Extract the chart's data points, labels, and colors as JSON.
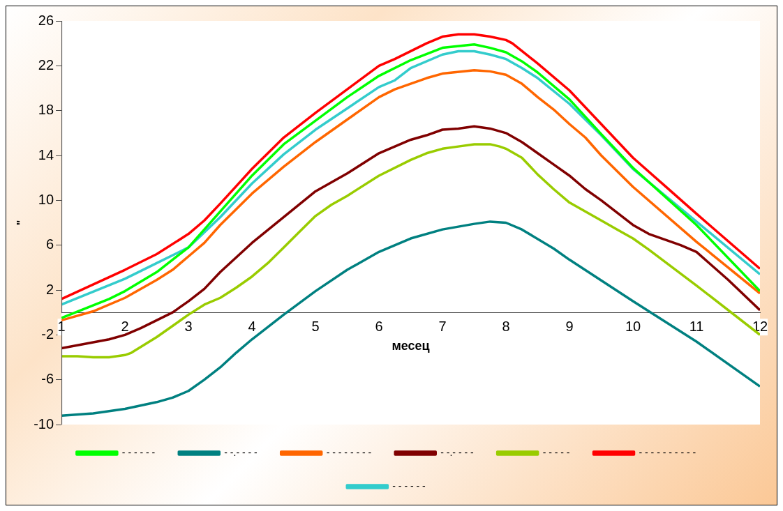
{
  "chart_data": {
    "type": "line",
    "xlabel": "месец",
    "ylabel": "\"",
    "xlim": [
      1,
      12
    ],
    "xticks": [
      1,
      2,
      3,
      4,
      5,
      6,
      7,
      8,
      9,
      10,
      11,
      12
    ],
    "ylim": [
      -10,
      26
    ],
    "yticks": [
      -10,
      -6,
      -2,
      2,
      6,
      10,
      14,
      18,
      22,
      26
    ],
    "grid": false,
    "legend": "bottom",
    "marker": "none",
    "line_style": "solid",
    "series": [
      {
        "name": "- - - - - -",
        "color": "#00ff00",
        "x": [
          1,
          1.75,
          2,
          2.5,
          3,
          3.5,
          4,
          4.5,
          5,
          5.5,
          6,
          6.5,
          7,
          7.5,
          7.75,
          8,
          8.25,
          8.5,
          9,
          9.5,
          10,
          11,
          12
        ],
        "values": [
          -0.5,
          1.2,
          1.9,
          3.6,
          5.8,
          9.0,
          12.2,
          15.0,
          17.1,
          19.2,
          21.1,
          22.5,
          23.6,
          23.9,
          23.6,
          23.2,
          22.4,
          21.4,
          19.0,
          15.9,
          12.9,
          7.8,
          1.9
        ]
      },
      {
        "name": "- -.- - - -",
        "color": "#008080",
        "x": [
          1,
          1.5,
          2,
          2.5,
          2.75,
          3,
          3.25,
          3.5,
          3.75,
          4,
          4.5,
          5,
          5.5,
          6,
          6.5,
          7,
          7.5,
          7.75,
          8,
          8.25,
          8.75,
          9,
          10,
          10.5,
          11,
          12
        ],
        "values": [
          -9.2,
          -9.0,
          -8.6,
          -8.0,
          -7.6,
          -7.0,
          -6.0,
          -4.9,
          -3.6,
          -2.4,
          -0.2,
          1.9,
          3.8,
          5.4,
          6.6,
          7.4,
          7.9,
          8.1,
          8.0,
          7.4,
          5.7,
          4.7,
          1.0,
          -0.8,
          -2.6,
          -6.6
        ]
      },
      {
        "name": "- - - - - - - -",
        "color": "#ff6600",
        "x": [
          1,
          1.5,
          2,
          2.5,
          2.75,
          3,
          3.25,
          3.5,
          4,
          4.5,
          5,
          5.5,
          6,
          6.25,
          6.5,
          6.75,
          7,
          7.5,
          7.75,
          8,
          8.25,
          8.5,
          8.75,
          9,
          9.25,
          9.5,
          10,
          11,
          12
        ],
        "values": [
          -0.7,
          0.1,
          1.3,
          2.9,
          3.8,
          5.0,
          6.2,
          7.8,
          10.6,
          13.0,
          15.2,
          17.2,
          19.2,
          19.9,
          20.4,
          20.9,
          21.3,
          21.6,
          21.5,
          21.2,
          20.4,
          19.2,
          18.1,
          16.8,
          15.6,
          14.0,
          11.2,
          6.3,
          1.7
        ]
      },
      {
        "name": "- -.- - - -",
        "color": "#800000",
        "x": [
          1,
          1.75,
          2,
          2.25,
          2.5,
          2.75,
          3,
          3.25,
          3.5,
          4,
          4.5,
          5,
          5.5,
          6,
          6.5,
          6.75,
          7,
          7.25,
          7.5,
          7.75,
          8,
          8.25,
          8.75,
          9,
          9.25,
          9.5,
          10,
          10.25,
          10.75,
          11,
          11.5,
          12
        ],
        "values": [
          -3.2,
          -2.4,
          -2.0,
          -1.4,
          -0.7,
          0.0,
          1.0,
          2.1,
          3.6,
          6.2,
          8.5,
          10.8,
          12.4,
          14.2,
          15.4,
          15.8,
          16.3,
          16.4,
          16.6,
          16.4,
          16.0,
          15.2,
          13.2,
          12.2,
          11.0,
          10.0,
          7.8,
          7.0,
          6.0,
          5.4,
          2.9,
          0.2
        ]
      },
      {
        "name": "- - - - -",
        "color": "#99cc00",
        "x": [
          1,
          1.25,
          1.5,
          1.75,
          2,
          2.1,
          2.5,
          2.75,
          3,
          3.25,
          3.5,
          3.75,
          4,
          4.25,
          4.5,
          4.75,
          5,
          5.25,
          5.5,
          6,
          6.5,
          6.75,
          7,
          7.25,
          7.5,
          7.75,
          7.9,
          8,
          8.25,
          8.5,
          8.75,
          9,
          9.5,
          9.75,
          10,
          10.25,
          11,
          12
        ],
        "values": [
          -3.9,
          -3.9,
          -4.0,
          -4.0,
          -3.8,
          -3.6,
          -2.2,
          -1.2,
          -0.2,
          0.7,
          1.3,
          2.2,
          3.2,
          4.4,
          5.8,
          7.2,
          8.6,
          9.6,
          10.4,
          12.2,
          13.6,
          14.2,
          14.6,
          14.8,
          15.0,
          15.0,
          14.8,
          14.6,
          13.8,
          12.3,
          11.0,
          9.8,
          8.2,
          7.4,
          6.6,
          5.6,
          2.4,
          -2.0
        ]
      },
      {
        "name": "- - - - - - - - - -",
        "color": "#ff0000",
        "x": [
          1,
          2,
          2.5,
          3,
          3.25,
          3.5,
          4,
          4.5,
          5,
          5.5,
          6,
          6.25,
          6.75,
          7,
          7.25,
          7.5,
          7.75,
          8,
          8.1,
          8.5,
          9,
          9.5,
          10,
          10.5,
          11,
          12
        ],
        "values": [
          1.2,
          3.8,
          5.2,
          7.0,
          8.2,
          9.7,
          12.8,
          15.6,
          17.8,
          19.9,
          22.0,
          22.6,
          24.0,
          24.6,
          24.8,
          24.8,
          24.6,
          24.3,
          24.0,
          22.2,
          19.8,
          16.8,
          13.8,
          11.3,
          8.8,
          3.9
        ]
      },
      {
        "name": "- - - - - -",
        "color": "#33cccc",
        "x": [
          1,
          2,
          2.5,
          3,
          3.5,
          4,
          4.5,
          5,
          5.5,
          6,
          6.25,
          6.5,
          7,
          7.25,
          7.5,
          7.75,
          8,
          8.25,
          8.5,
          9,
          9.5,
          10,
          11,
          12
        ],
        "values": [
          0.7,
          3.0,
          4.4,
          5.8,
          8.5,
          11.5,
          14.1,
          16.3,
          18.2,
          20.1,
          20.7,
          21.8,
          23.0,
          23.3,
          23.3,
          23.0,
          22.6,
          21.8,
          20.9,
          18.6,
          15.8,
          12.8,
          8.1,
          3.4
        ]
      }
    ]
  }
}
